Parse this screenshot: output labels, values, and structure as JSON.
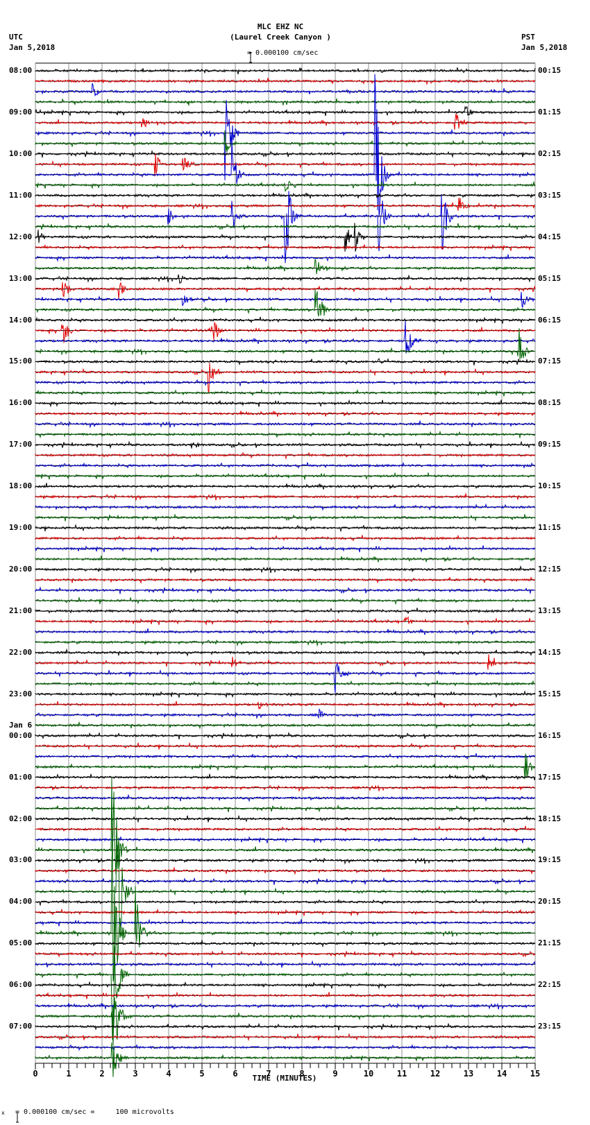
{
  "header": {
    "title": "MLC EHZ NC",
    "subtitle": "(Laurel Creek Canyon )",
    "scale_text": "= 0.000100 cm/sec",
    "left_tz": "UTC",
    "left_date": "Jan 5,2018",
    "right_tz": "PST",
    "right_date": "Jan 5,2018"
  },
  "footer": {
    "scale_text": "= 0.000100 cm/sec =     100 microvolts",
    "prefix": "x"
  },
  "chart_data": {
    "type": "line",
    "title": "MLC EHZ NC (Laurel Creek Canyon )",
    "xlabel": "TIME (MINUTES)",
    "ylabel": "",
    "xlim": [
      0,
      15
    ],
    "x_ticks": [
      "0",
      "1",
      "2",
      "3",
      "4",
      "5",
      "6",
      "7",
      "8",
      "9",
      "10",
      "11",
      "12",
      "13",
      "14",
      "15"
    ],
    "trace_colors": [
      "#000000",
      "#e00000",
      "#0000d0",
      "#006400"
    ],
    "traces_per_hour": 4,
    "minutes_per_trace": 15,
    "left_labels": [
      {
        "row": 0,
        "text": "08:00"
      },
      {
        "row": 4,
        "text": "09:00"
      },
      {
        "row": 8,
        "text": "10:00"
      },
      {
        "row": 12,
        "text": "11:00"
      },
      {
        "row": 16,
        "text": "12:00"
      },
      {
        "row": 20,
        "text": "13:00"
      },
      {
        "row": 24,
        "text": "14:00"
      },
      {
        "row": 28,
        "text": "15:00"
      },
      {
        "row": 32,
        "text": "16:00"
      },
      {
        "row": 36,
        "text": "17:00"
      },
      {
        "row": 40,
        "text": "18:00"
      },
      {
        "row": 44,
        "text": "19:00"
      },
      {
        "row": 48,
        "text": "20:00"
      },
      {
        "row": 52,
        "text": "21:00"
      },
      {
        "row": 56,
        "text": "22:00"
      },
      {
        "row": 60,
        "text": "23:00"
      },
      {
        "row": 63,
        "text": "Jan 6"
      },
      {
        "row": 64,
        "text": "00:00"
      },
      {
        "row": 68,
        "text": "01:00"
      },
      {
        "row": 72,
        "text": "02:00"
      },
      {
        "row": 76,
        "text": "03:00"
      },
      {
        "row": 80,
        "text": "04:00"
      },
      {
        "row": 84,
        "text": "05:00"
      },
      {
        "row": 88,
        "text": "06:00"
      },
      {
        "row": 92,
        "text": "07:00"
      }
    ],
    "right_labels": [
      "00:15",
      "01:15",
      "02:15",
      "03:15",
      "04:15",
      "05:15",
      "06:15",
      "07:15",
      "08:15",
      "09:15",
      "10:15",
      "11:15",
      "12:15",
      "13:15",
      "14:15",
      "15:15",
      "16:15",
      "17:15",
      "18:15",
      "19:15",
      "20:15",
      "21:15",
      "22:15",
      "23:15"
    ],
    "events": [
      {
        "row": 2,
        "minute": 1.7,
        "amp": 14
      },
      {
        "row": 5,
        "minute": 3.2,
        "amp": 16
      },
      {
        "row": 5,
        "minute": 12.6,
        "amp": 22
      },
      {
        "row": 4,
        "minute": 12.9,
        "amp": 12
      },
      {
        "row": 6,
        "minute": 5.7,
        "amp": 90
      },
      {
        "row": 7,
        "minute": 5.7,
        "amp": 20
      },
      {
        "row": 9,
        "minute": 3.6,
        "amp": 18
      },
      {
        "row": 9,
        "minute": 4.4,
        "amp": 18
      },
      {
        "row": 10,
        "minute": 5.9,
        "amp": 50
      },
      {
        "row": 10,
        "minute": 10.2,
        "amp": 160
      },
      {
        "row": 11,
        "minute": 7.5,
        "amp": 18
      },
      {
        "row": 13,
        "minute": 12.7,
        "amp": 20
      },
      {
        "row": 14,
        "minute": 5.9,
        "amp": 30
      },
      {
        "row": 14,
        "minute": 7.5,
        "amp": 90
      },
      {
        "row": 14,
        "minute": 10.3,
        "amp": 60
      },
      {
        "row": 14,
        "minute": 12.2,
        "amp": 60
      },
      {
        "row": 14,
        "minute": 4.0,
        "amp": 12
      },
      {
        "row": 16,
        "minute": 9.3,
        "amp": 28
      },
      {
        "row": 16,
        "minute": 9.6,
        "amp": 24
      },
      {
        "row": 16,
        "minute": 0.1,
        "amp": 12
      },
      {
        "row": 19,
        "minute": 8.4,
        "amp": 18
      },
      {
        "row": 20,
        "minute": 4.3,
        "amp": 10
      },
      {
        "row": 21,
        "minute": 2.5,
        "amp": 14
      },
      {
        "row": 21,
        "minute": 0.8,
        "amp": 20
      },
      {
        "row": 22,
        "minute": 4.4,
        "amp": 16
      },
      {
        "row": 22,
        "minute": 14.6,
        "amp": 18
      },
      {
        "row": 23,
        "minute": 8.4,
        "amp": 70
      },
      {
        "row": 25,
        "minute": 0.8,
        "amp": 30
      },
      {
        "row": 25,
        "minute": 5.3,
        "amp": 30
      },
      {
        "row": 27,
        "minute": 14.5,
        "amp": 40
      },
      {
        "row": 26,
        "minute": 11.1,
        "amp": 40
      },
      {
        "row": 29,
        "minute": 5.2,
        "amp": 40
      },
      {
        "row": 28,
        "minute": 10.3,
        "amp": 8
      },
      {
        "row": 36,
        "minute": 4.7,
        "amp": 8
      },
      {
        "row": 53,
        "minute": 11.1,
        "amp": 12
      },
      {
        "row": 58,
        "minute": 9.0,
        "amp": 28
      },
      {
        "row": 57,
        "minute": 5.9,
        "amp": 12
      },
      {
        "row": 57,
        "minute": 13.6,
        "amp": 12
      },
      {
        "row": 61,
        "minute": 6.7,
        "amp": 10
      },
      {
        "row": 62,
        "minute": 8.5,
        "amp": 10
      },
      {
        "row": 67,
        "minute": 14.7,
        "amp": 24
      },
      {
        "row": 75,
        "minute": 2.3,
        "amp": 140
      },
      {
        "row": 79,
        "minute": 2.45,
        "amp": 140
      },
      {
        "row": 83,
        "minute": 2.3,
        "amp": 160
      },
      {
        "row": 83,
        "minute": 3.0,
        "amp": 70
      },
      {
        "row": 87,
        "minute": 2.3,
        "amp": 140
      },
      {
        "row": 91,
        "minute": 2.3,
        "amp": 120
      },
      {
        "row": 95,
        "minute": 2.3,
        "amp": 40
      }
    ]
  }
}
